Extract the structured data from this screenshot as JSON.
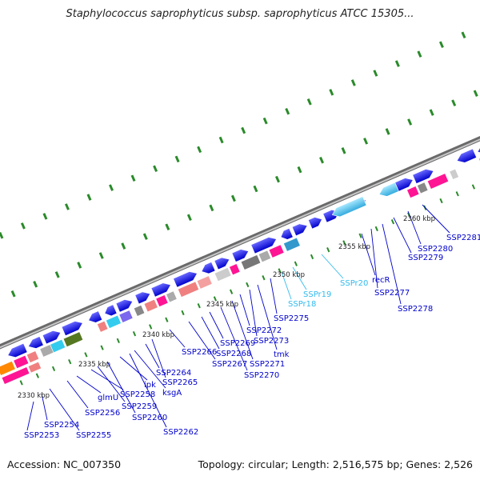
{
  "title": "Staphylococcus saprophyticus subsp. saprophyticus ATCC 15305...",
  "footer": {
    "accession": "Accession: NC_007350",
    "summary": "Topology: circular; Length: 2,516,575 bp; Genes: 2,526"
  },
  "ticks": [
    "2330 kbp",
    "2335 kbp",
    "2340 kbp",
    "2345 kbp",
    "2350 kbp",
    "2355 kbp",
    "2360 kbp"
  ],
  "genes": [
    {
      "label": "SSP2253",
      "color": "#0000cc"
    },
    {
      "label": "SSP2254",
      "color": "#0000cc"
    },
    {
      "label": "SSP2255",
      "color": "#0000cc"
    },
    {
      "label": "SSP2256",
      "color": "#0000cc"
    },
    {
      "label": "glmU",
      "color": "#0000cc"
    },
    {
      "label": "SSP2258",
      "color": "#0000cc"
    },
    {
      "label": "SSP2259",
      "color": "#0000cc"
    },
    {
      "label": "SSP2260",
      "color": "#0000cc"
    },
    {
      "label": "ipk",
      "color": "#0000cc"
    },
    {
      "label": "SSP2262",
      "color": "#0000cc"
    },
    {
      "label": "ksgA",
      "color": "#0000cc"
    },
    {
      "label": "SSP2264",
      "color": "#0000cc"
    },
    {
      "label": "SSP2265",
      "color": "#0000cc"
    },
    {
      "label": "SSP2266",
      "color": "#0000cc"
    },
    {
      "label": "SSP2267",
      "color": "#0000cc"
    },
    {
      "label": "SSP2268",
      "color": "#0000cc"
    },
    {
      "label": "SSP2269",
      "color": "#0000cc"
    },
    {
      "label": "SSP2270",
      "color": "#0000cc"
    },
    {
      "label": "SSP2271",
      "color": "#0000cc"
    },
    {
      "label": "SSP2272",
      "color": "#0000cc"
    },
    {
      "label": "SSP2273",
      "color": "#0000cc"
    },
    {
      "label": "tmk",
      "color": "#0000cc"
    },
    {
      "label": "SSP2275",
      "color": "#0000cc"
    },
    {
      "label": "SSPr18",
      "color": "#33bbee"
    },
    {
      "label": "SSPr19",
      "color": "#33bbee"
    },
    {
      "label": "SSPr20",
      "color": "#33bbee"
    },
    {
      "label": "recR",
      "color": "#0000cc"
    },
    {
      "label": "SSP2277",
      "color": "#0000cc"
    },
    {
      "label": "SSP2278",
      "color": "#0000cc"
    },
    {
      "label": "SSP2279",
      "color": "#0000cc"
    },
    {
      "label": "SSP2280",
      "color": "#0000cc"
    },
    {
      "label": "SSP2281",
      "color": "#0000cc"
    }
  ],
  "colors": {
    "backbone": "#8a8a8a",
    "forward_genes": "#1a1ae6",
    "rna_genes": "#33bbee",
    "tick_marks": "#2a8a2a"
  }
}
